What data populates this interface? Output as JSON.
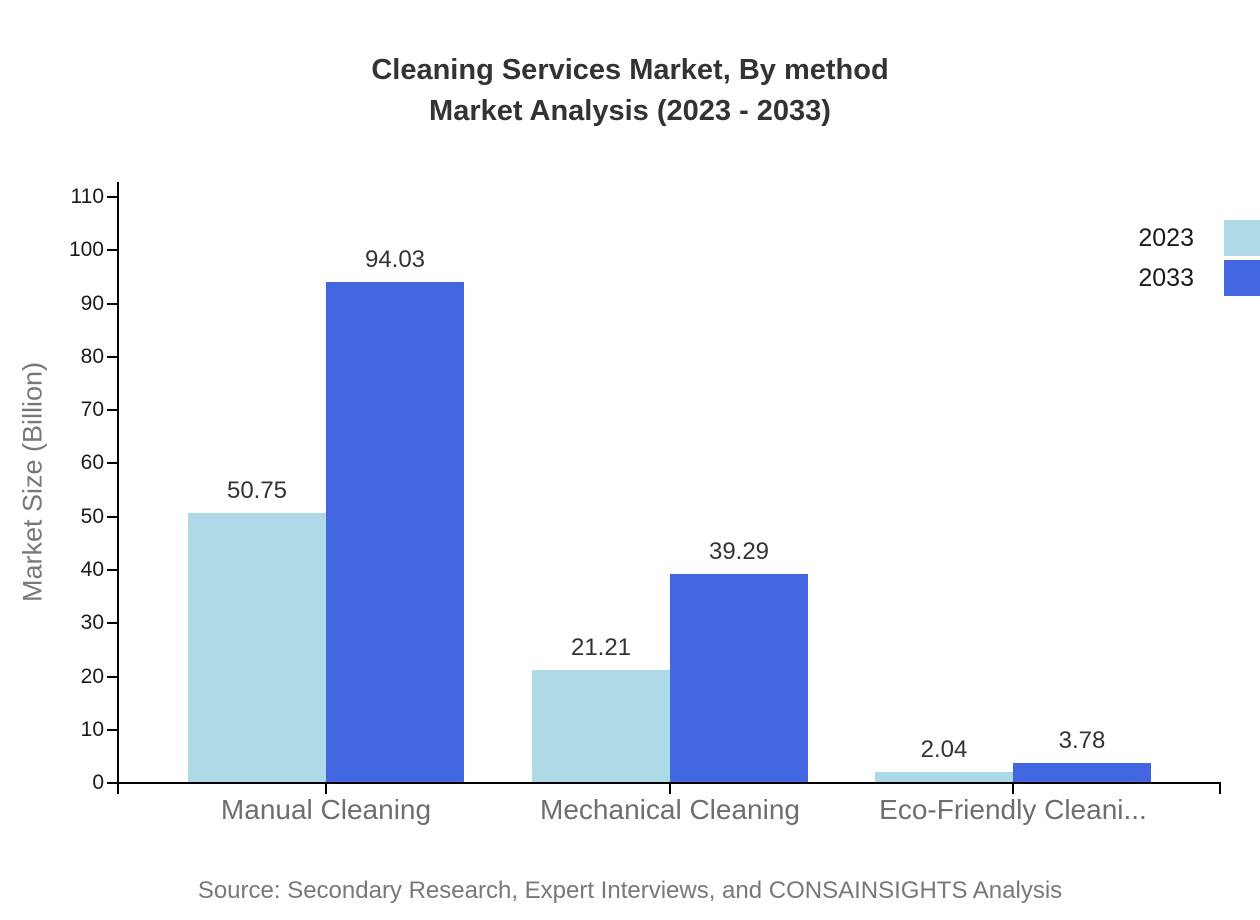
{
  "page": {
    "background": "#ffffff"
  },
  "title": {
    "line1": "Cleaning Services Market, By method",
    "line2": "Market Analysis (2023 - 2033)"
  },
  "source": {
    "text": "Source: Secondary Research, Expert Interviews, and CONSAINSIGHTS Analysis"
  },
  "colors": {
    "series_2023": "#ADD8E6",
    "series_2033": "#4266E0",
    "axis": "#000000",
    "tick_label": "#1a1a1a",
    "category_label": "#6e6e6e",
    "muted_gray": "#787878",
    "title_text": "#333333"
  },
  "chart_data": {
    "type": "bar",
    "title": "Cleaning Services Market, By method — Market Analysis (2023 - 2033)",
    "categories": [
      "Manual Cleaning",
      "Mechanical Cleaning",
      "Eco-Friendly Cleani..."
    ],
    "series": [
      {
        "name": "2023",
        "color": "#ADD8E6",
        "values": [
          50.75,
          21.21,
          2.04
        ]
      },
      {
        "name": "2033",
        "color": "#4266E0",
        "values": [
          94.03,
          39.29,
          3.78
        ]
      }
    ],
    "value_labels": [
      [
        "50.75",
        "21.21",
        "2.04"
      ],
      [
        "94.03",
        "39.29",
        "3.78"
      ]
    ],
    "xlabel": "",
    "ylabel": "Market Size (Billion)",
    "ylim": [
      0,
      110
    ],
    "y_ticks": [
      0,
      10,
      20,
      30,
      40,
      50,
      60,
      70,
      80,
      90,
      100,
      110
    ],
    "grid": false,
    "legend_position": "right-top",
    "value_label_position": "above-bar"
  }
}
